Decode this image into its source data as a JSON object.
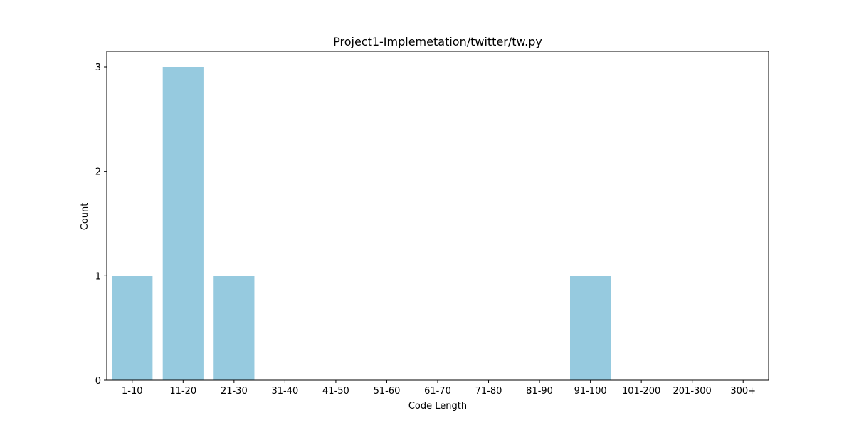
{
  "chart_data": {
    "type": "bar",
    "title": "Project1-Implemetation/twitter/tw.py",
    "xlabel": "Code Length",
    "ylabel": "Count",
    "categories": [
      "1-10",
      "11-20",
      "21-30",
      "31-40",
      "41-50",
      "51-60",
      "61-70",
      "71-80",
      "81-90",
      "91-100",
      "101-200",
      "201-300",
      "300+"
    ],
    "values": [
      1,
      3,
      1,
      0,
      0,
      0,
      0,
      0,
      0,
      1,
      0,
      0,
      0
    ],
    "ylim": [
      0,
      3.15
    ],
    "yticks": [
      0,
      1,
      2,
      3
    ],
    "grid": false,
    "legend": "none",
    "bar_color": "#96cadf",
    "axis_color": "#000000"
  }
}
